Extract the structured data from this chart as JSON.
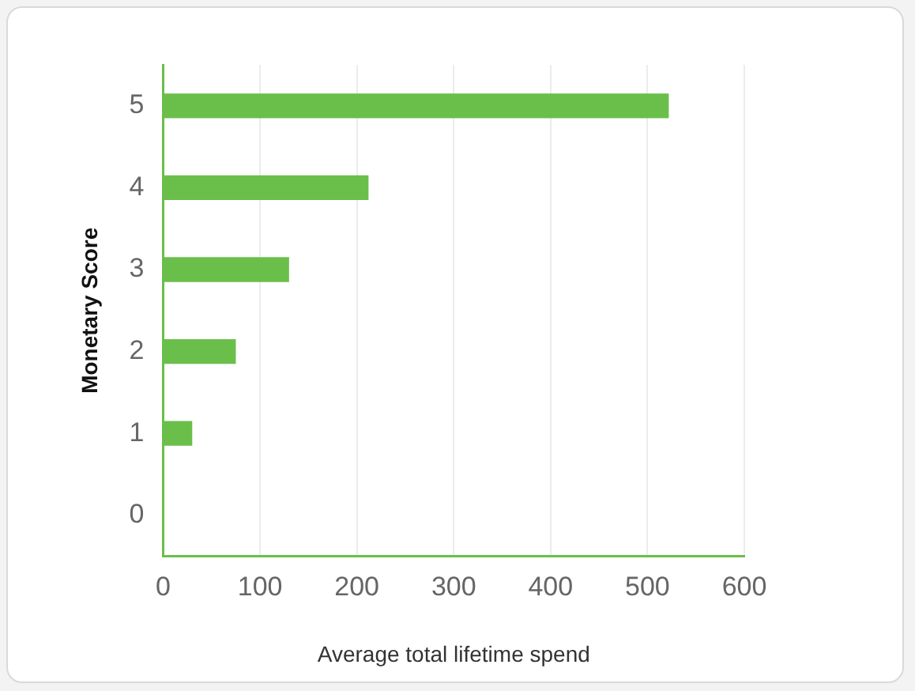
{
  "chart_data": {
    "type": "bar",
    "orientation": "horizontal",
    "xlabel": "Average total lifetime spend",
    "ylabel": "Monetary Score",
    "categories": [
      "5",
      "4",
      "3",
      "2",
      "1",
      "0"
    ],
    "values": [
      522,
      212,
      130,
      75,
      30,
      1
    ],
    "color": "#6abf4b",
    "xlim": [
      0,
      600
    ],
    "xticks": [
      0,
      100,
      200,
      300,
      400,
      500,
      600
    ],
    "grid": "x",
    "legend": false
  }
}
